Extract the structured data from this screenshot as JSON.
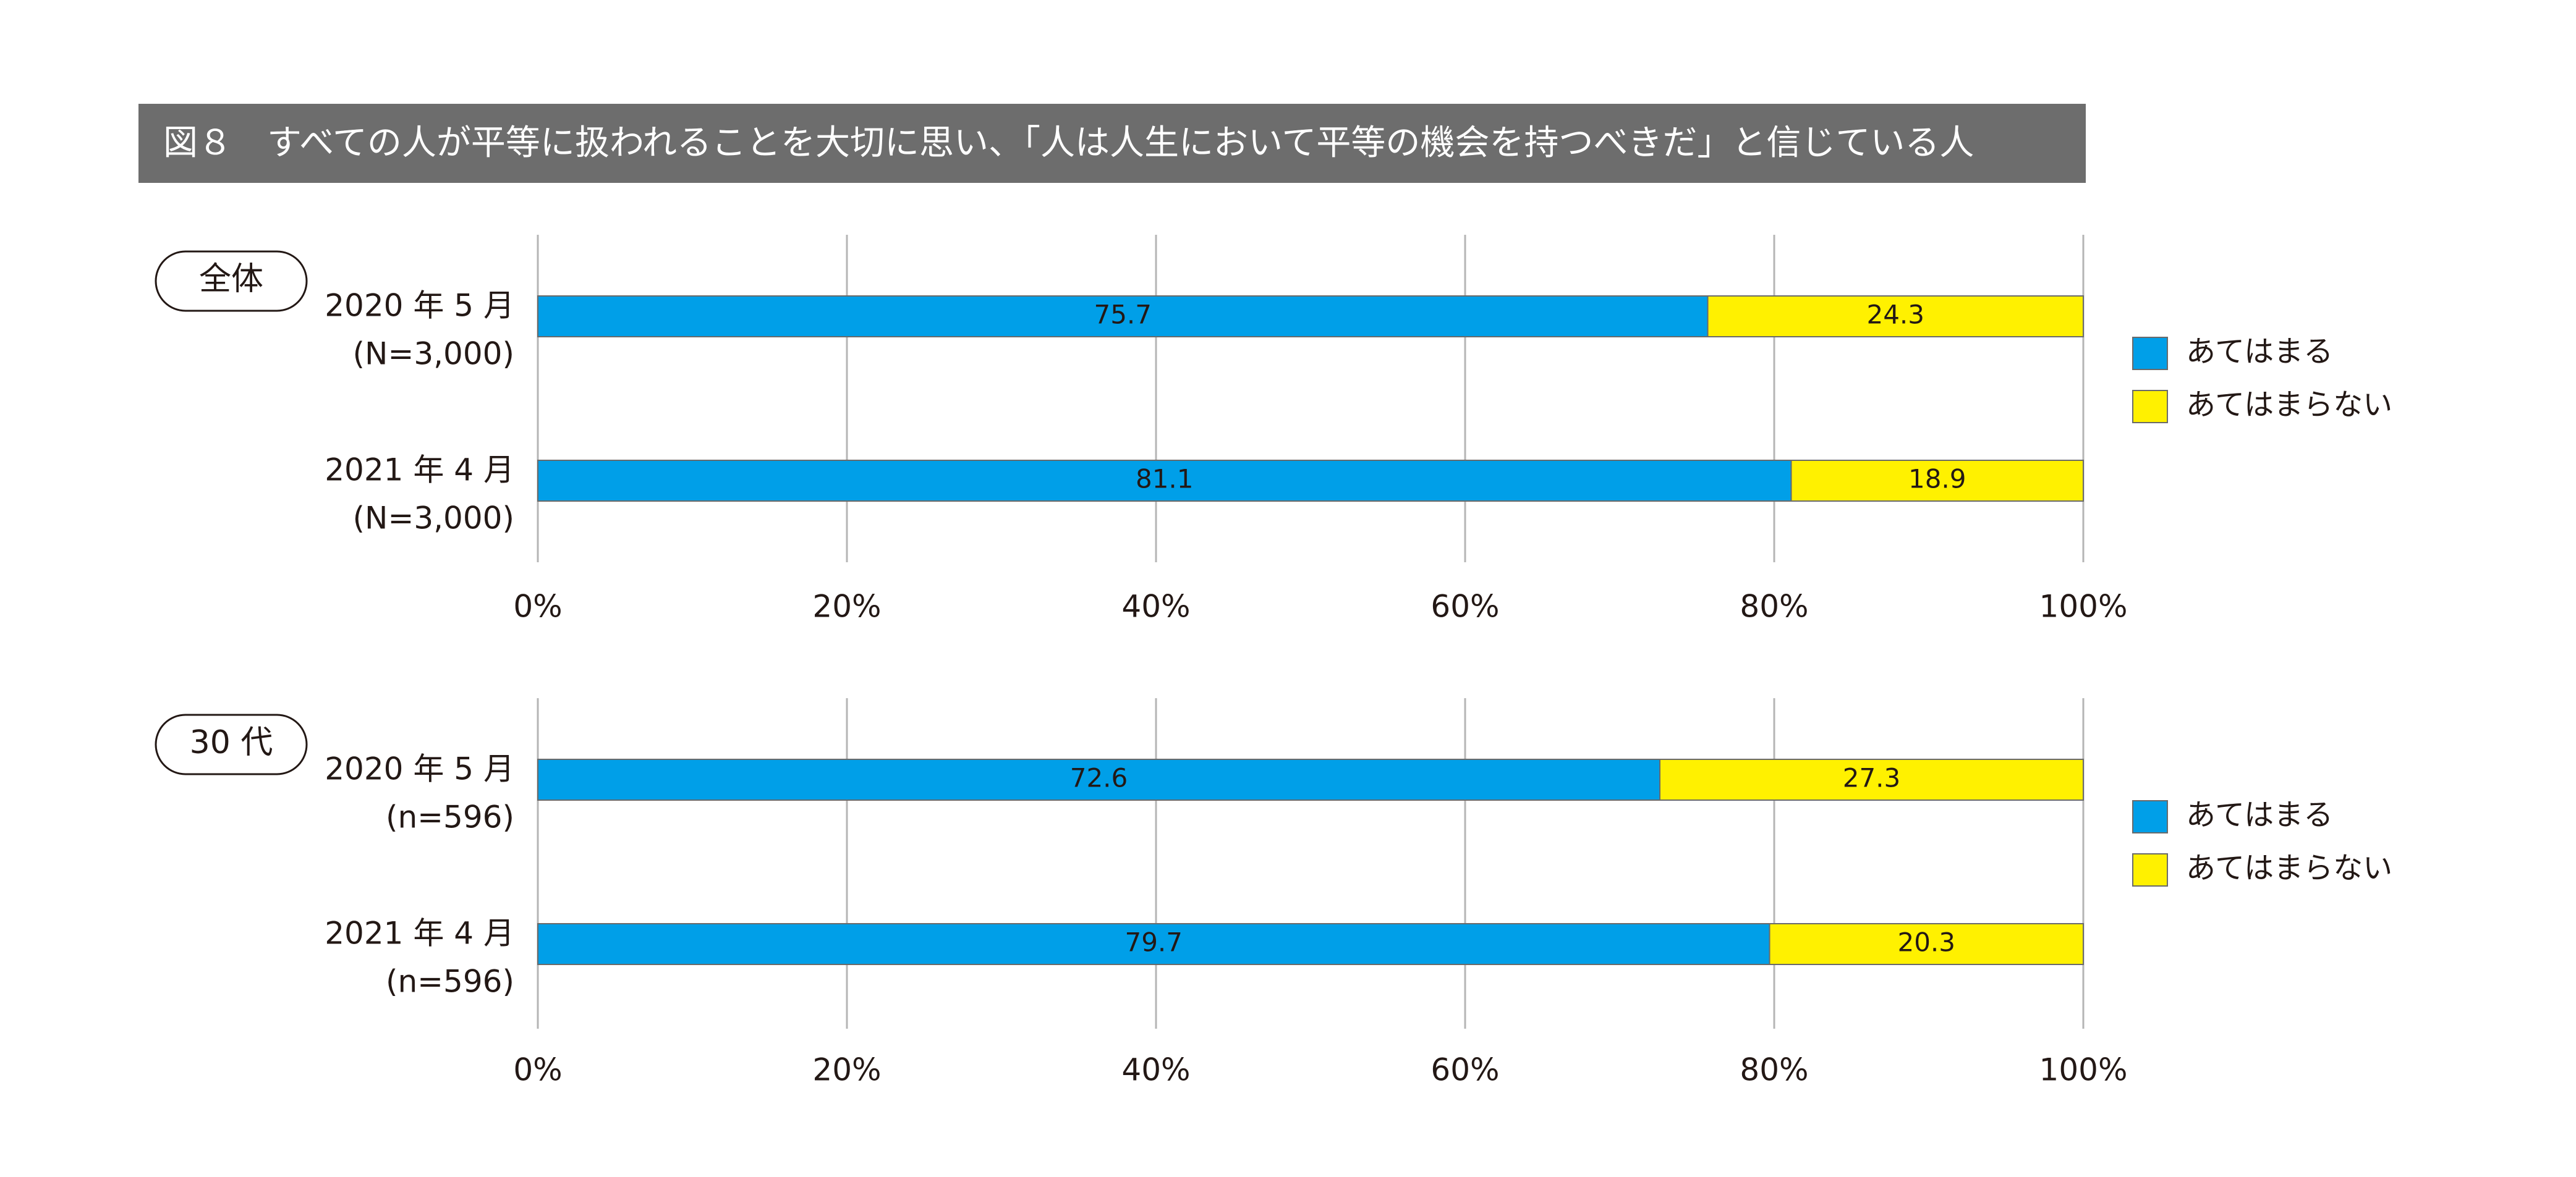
{
  "title": "図８　すべての人が平等に扱われることを大切に思い、「人は人生において平等の機会を持つべきだ」と信じている人",
  "colors": {
    "yes": "#009fe8",
    "no": "#fff100",
    "grid": "#b5b5b5",
    "title_bg": "#6d6d6d"
  },
  "chart_data": [
    {
      "type": "bar",
      "orientation": "horizontal",
      "stacked": true,
      "group_label": "全体",
      "categories": [
        {
          "label": "2020 年 5 月",
          "n": "(N=3,000)"
        },
        {
          "label": "2021 年 4 月",
          "n": "(N=3,000)"
        }
      ],
      "series": [
        {
          "name": "あてはまる",
          "values": [
            75.7,
            81.1
          ],
          "labels": [
            "75.7",
            "81.1"
          ]
        },
        {
          "name": "あてはまらない",
          "values": [
            24.3,
            18.9
          ],
          "labels": [
            "24.3",
            "18.9"
          ]
        }
      ],
      "xlim": [
        0,
        100
      ],
      "ticks": [
        "0%",
        "20%",
        "40%",
        "60%",
        "80%",
        "100%"
      ],
      "grid": true,
      "legend": "right"
    },
    {
      "type": "bar",
      "orientation": "horizontal",
      "stacked": true,
      "group_label": "30 代",
      "categories": [
        {
          "label": "2020 年 5 月",
          "n": "(n=596)"
        },
        {
          "label": "2021 年 4 月",
          "n": "(n=596)"
        }
      ],
      "series": [
        {
          "name": "あてはまる",
          "values": [
            72.6,
            79.7
          ],
          "labels": [
            "72.6",
            "79.7"
          ]
        },
        {
          "name": "あてはまらない",
          "values": [
            27.3,
            20.3
          ],
          "labels": [
            "27.3",
            "20.3"
          ]
        }
      ],
      "xlim": [
        0,
        100
      ],
      "ticks": [
        "0%",
        "20%",
        "40%",
        "60%",
        "80%",
        "100%"
      ],
      "grid": true,
      "legend": "right"
    }
  ]
}
